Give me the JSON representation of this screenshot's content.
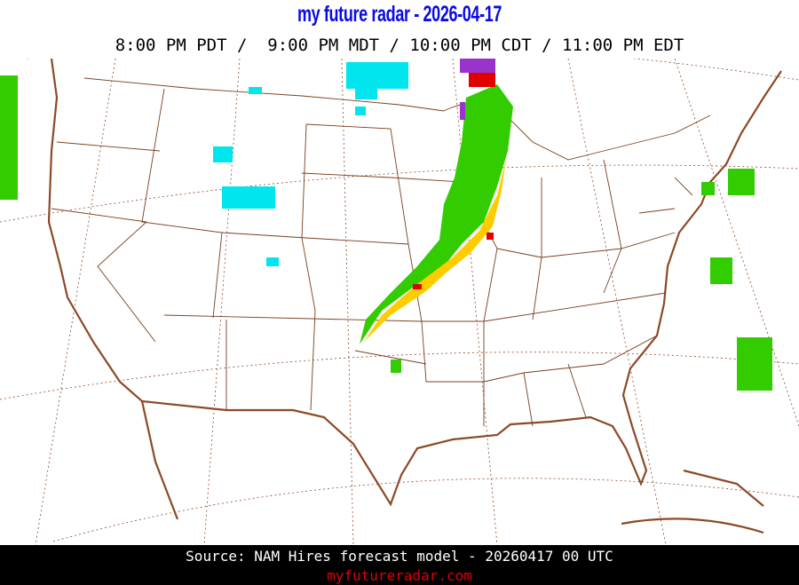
{
  "header": {
    "title": "my future radar - 2026-04-17",
    "time_line": "8:00 PM PDT /  9:00 PM MDT / 10:00 PM CDT / 11:00 PM EDT"
  },
  "map": {
    "region": "Contiguous United States",
    "colors": {
      "coast": "#8b4a26",
      "state_lines": "#7a3f1c",
      "rain_light": "#33cc00",
      "rain_heavy": "#ffcc00",
      "rain_intense": "#e00000",
      "snow": "#00e5ee",
      "mix": "#9933cc"
    }
  },
  "footer": {
    "source": "Source: NAM Hires forecast model - 20260417 00 UTC",
    "site": "myfutureradar.com"
  }
}
